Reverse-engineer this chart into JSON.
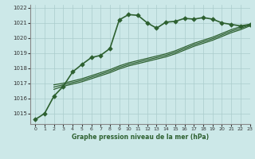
{
  "title": "Graphe pression niveau de la mer (hPa)",
  "bg_color": "#cce8e8",
  "grid_color": "#aacccc",
  "line_color": "#2d6030",
  "xlim": [
    -0.5,
    23
  ],
  "ylim": [
    1014.3,
    1022.2
  ],
  "yticks": [
    1015,
    1016,
    1017,
    1018,
    1019,
    1020,
    1021,
    1022
  ],
  "xticks": [
    0,
    1,
    2,
    3,
    4,
    5,
    6,
    7,
    8,
    9,
    10,
    11,
    12,
    13,
    14,
    15,
    16,
    17,
    18,
    19,
    20,
    21,
    22,
    23
  ],
  "main_series": {
    "x": [
      0,
      1,
      2,
      3,
      4,
      5,
      6,
      7,
      8,
      9,
      10,
      11,
      12,
      13,
      14,
      15,
      16,
      17,
      18,
      19,
      20,
      21,
      22,
      23
    ],
    "y": [
      1014.6,
      1015.0,
      1016.15,
      1016.8,
      1017.75,
      1018.25,
      1018.7,
      1018.85,
      1019.3,
      1021.2,
      1021.55,
      1021.5,
      1021.0,
      1020.65,
      1021.05,
      1021.1,
      1021.3,
      1021.25,
      1021.35,
      1021.25,
      1021.0,
      1020.9,
      1020.8,
      1020.9
    ]
  },
  "smooth_series": [
    {
      "x": [
        2,
        3,
        4,
        5,
        6,
        7,
        8,
        9,
        10,
        11,
        12,
        13,
        14,
        15,
        16,
        17,
        18,
        19,
        20,
        21,
        22,
        23
      ],
      "y": [
        1016.9,
        1017.0,
        1017.15,
        1017.3,
        1017.5,
        1017.7,
        1017.9,
        1018.15,
        1018.35,
        1018.5,
        1018.65,
        1018.8,
        1018.95,
        1019.15,
        1019.4,
        1019.65,
        1019.85,
        1020.05,
        1020.3,
        1020.55,
        1020.75,
        1020.9
      ]
    },
    {
      "x": [
        2,
        3,
        4,
        5,
        6,
        7,
        8,
        9,
        10,
        11,
        12,
        13,
        14,
        15,
        16,
        17,
        18,
        19,
        20,
        21,
        22,
        23
      ],
      "y": [
        1016.75,
        1016.9,
        1017.05,
        1017.2,
        1017.4,
        1017.6,
        1017.8,
        1018.05,
        1018.25,
        1018.4,
        1018.55,
        1018.7,
        1018.85,
        1019.05,
        1019.3,
        1019.55,
        1019.75,
        1019.95,
        1020.2,
        1020.45,
        1020.65,
        1020.85
      ]
    },
    {
      "x": [
        2,
        3,
        4,
        5,
        6,
        7,
        8,
        9,
        10,
        11,
        12,
        13,
        14,
        15,
        16,
        17,
        18,
        19,
        20,
        21,
        22,
        23
      ],
      "y": [
        1016.6,
        1016.8,
        1016.95,
        1017.1,
        1017.3,
        1017.5,
        1017.7,
        1017.95,
        1018.15,
        1018.3,
        1018.45,
        1018.6,
        1018.75,
        1018.95,
        1019.2,
        1019.45,
        1019.65,
        1019.85,
        1020.1,
        1020.35,
        1020.55,
        1020.8
      ]
    }
  ]
}
